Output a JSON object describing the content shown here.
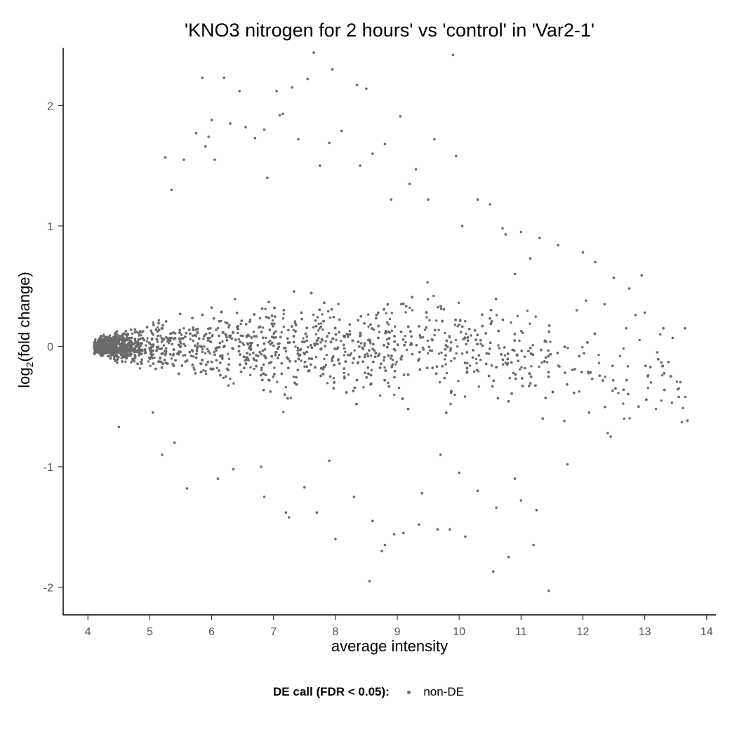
{
  "chart_data": {
    "type": "scatter",
    "title": "'KNO3 nitrogen for 2 hours' vs 'control' in 'Var2-1'",
    "xlabel": "average intensity",
    "ylabel_prefix": "log",
    "ylabel_sub": "2",
    "ylabel_suffix": "(fold change)",
    "xlim": [
      3.6,
      14.15
    ],
    "ylim": [
      -2.23,
      2.48
    ],
    "x_ticks": [
      4,
      5,
      6,
      7,
      8,
      9,
      10,
      11,
      12,
      13,
      14
    ],
    "y_ticks": [
      -2,
      -1,
      0,
      1,
      2
    ],
    "grid": false,
    "legend": {
      "title": "DE call (FDR < 0.05):",
      "entries": [
        {
          "name": "non-DE",
          "color": "#6b6b6b"
        }
      ],
      "position": "bottom"
    },
    "point_color": "#6b6b6b",
    "points": [
      [
        7.65,
        2.44
      ],
      [
        9.9,
        2.42
      ],
      [
        7.95,
        2.3
      ],
      [
        7.55,
        2.22
      ],
      [
        5.85,
        2.23
      ],
      [
        6.2,
        2.23
      ],
      [
        8.35,
        2.17
      ],
      [
        8.5,
        2.14
      ],
      [
        7.3,
        2.15
      ],
      [
        6.45,
        2.12
      ],
      [
        7.05,
        2.12
      ],
      [
        7.1,
        1.92
      ],
      [
        7.15,
        1.93
      ],
      [
        9.05,
        1.91
      ],
      [
        6.0,
        1.88
      ],
      [
        6.3,
        1.85
      ],
      [
        6.55,
        1.82
      ],
      [
        6.85,
        1.8
      ],
      [
        8.1,
        1.79
      ],
      [
        5.75,
        1.77
      ],
      [
        5.95,
        1.74
      ],
      [
        7.4,
        1.72
      ],
      [
        9.6,
        1.72
      ],
      [
        6.7,
        1.73
      ],
      [
        5.9,
        1.66
      ],
      [
        5.55,
        1.55
      ],
      [
        6.05,
        1.55
      ],
      [
        9.95,
        1.58
      ],
      [
        5.25,
        1.57
      ],
      [
        8.8,
        1.68
      ],
      [
        7.9,
        1.69
      ],
      [
        8.6,
        1.6
      ],
      [
        9.3,
        1.47
      ],
      [
        7.75,
        1.5
      ],
      [
        6.9,
        1.4
      ],
      [
        8.4,
        1.5
      ],
      [
        5.35,
        1.3
      ],
      [
        9.5,
        1.22
      ],
      [
        10.3,
        1.22
      ],
      [
        10.5,
        1.18
      ],
      [
        10.05,
        1.0
      ],
      [
        10.7,
        0.98
      ],
      [
        11.0,
        0.95
      ],
      [
        11.3,
        0.9
      ],
      [
        10.75,
        0.93
      ],
      [
        11.6,
        0.84
      ],
      [
        12.0,
        0.78
      ],
      [
        11.15,
        0.73
      ],
      [
        12.2,
        0.7
      ],
      [
        12.5,
        0.57
      ],
      [
        12.95,
        0.59
      ],
      [
        12.75,
        0.48
      ],
      [
        12.35,
        0.35
      ],
      [
        12.05,
        0.38
      ],
      [
        13.0,
        0.28
      ],
      [
        12.85,
        0.26
      ],
      [
        13.3,
        0.15
      ],
      [
        13.65,
        0.15
      ],
      [
        13.45,
        0.07
      ],
      [
        13.25,
        0.1
      ],
      [
        13.55,
        -0.35
      ],
      [
        13.55,
        -0.42
      ],
      [
        13.6,
        -0.63
      ],
      [
        13.2,
        -0.05
      ],
      [
        13.05,
        -0.25
      ],
      [
        12.6,
        -0.08
      ],
      [
        12.4,
        -0.72
      ],
      [
        12.1,
        -0.55
      ],
      [
        11.7,
        -0.62
      ],
      [
        11.35,
        -0.6
      ],
      [
        11.25,
        -1.36
      ],
      [
        11.2,
        -1.65
      ],
      [
        11.45,
        -2.03
      ],
      [
        10.8,
        -1.75
      ],
      [
        10.55,
        -1.87
      ],
      [
        10.6,
        -1.34
      ],
      [
        10.3,
        -1.2
      ],
      [
        10.1,
        -1.58
      ],
      [
        9.85,
        -1.52
      ],
      [
        9.65,
        -1.52
      ],
      [
        9.35,
        -1.48
      ],
      [
        9.1,
        -1.55
      ],
      [
        8.95,
        -1.56
      ],
      [
        8.8,
        -1.65
      ],
      [
        8.75,
        -1.7
      ],
      [
        8.55,
        -1.95
      ],
      [
        8.6,
        -1.45
      ],
      [
        8.0,
        -1.6
      ],
      [
        7.7,
        -1.38
      ],
      [
        7.25,
        -1.42
      ],
      [
        7.2,
        -1.38
      ],
      [
        6.85,
        -1.25
      ],
      [
        6.1,
        -1.1
      ],
      [
        5.6,
        -1.18
      ],
      [
        5.2,
        -0.9
      ],
      [
        4.5,
        -0.67
      ],
      [
        6.35,
        -1.02
      ],
      [
        6.8,
        -1.0
      ],
      [
        7.5,
        -1.17
      ],
      [
        9.4,
        -1.22
      ],
      [
        10.0,
        -1.05
      ],
      [
        11.0,
        -1.28
      ],
      [
        11.75,
        -0.98
      ],
      [
        12.45,
        -0.75
      ],
      [
        12.9,
        -0.5
      ],
      [
        10.9,
        -1.1
      ],
      [
        8.3,
        -1.25
      ],
      [
        7.9,
        -0.95
      ],
      [
        9.7,
        -0.9
      ],
      [
        5.05,
        -0.55
      ],
      [
        5.4,
        -0.8
      ],
      [
        9.2,
        1.35
      ],
      [
        8.9,
        1.22
      ],
      [
        10.9,
        0.6
      ],
      [
        11.9,
        0.3
      ],
      [
        12.7,
        0.15
      ],
      [
        13.1,
        -0.3
      ]
    ]
  }
}
